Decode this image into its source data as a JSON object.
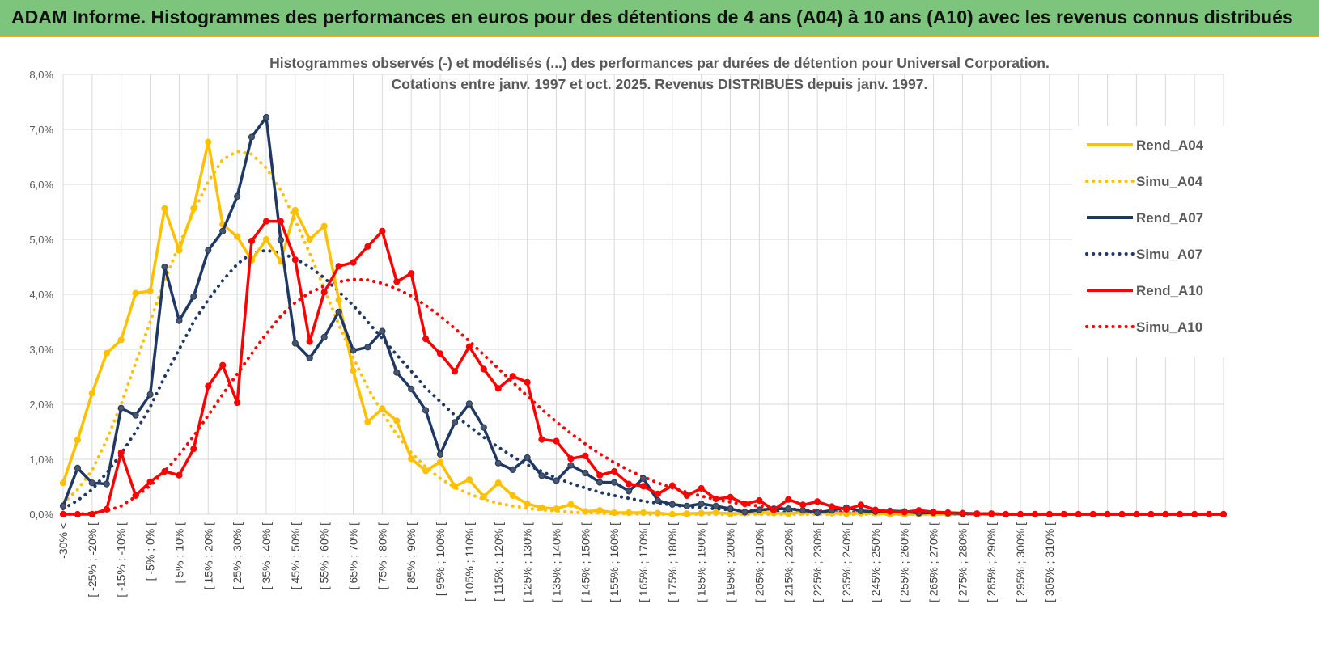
{
  "header": {
    "title": "ADAM Informe. Histogrammes des performances en euros pour des détentions de 4 ans (A04) à 10 ans (A10) avec les revenus connus distribués"
  },
  "chart_data": {
    "type": "line",
    "title_lines": [
      "Histogrammes observés (-) et modélisés (...) des performances par durées de détention pour Universal Corporation.",
      "Cotations entre janv. 1997 et oct. 2025. Revenus DISTRIBUES depuis janv. 1997."
    ],
    "ylim": [
      0,
      8
    ],
    "yticks": [
      "0,0%",
      "1,0%",
      "2,0%",
      "3,0%",
      "4,0%",
      "5,0%",
      "6,0%",
      "7,0%",
      "8,0%"
    ],
    "x_labels": [
      "-30% <",
      "[ -25% ; -20% [",
      "[ -15% ; -10% [",
      "[ -5% ; 0% [",
      "[ 5% ; 10% [",
      "[ 15% ; 20% [",
      "[ 25% ; 30% [",
      "[ 35% ; 40% [",
      "[ 45% ; 50% [",
      "[ 55% ; 60% [",
      "[ 65% ; 70% [",
      "[ 75% ; 80% [",
      "[ 85% ; 90% [",
      "[ 95% ; 100% [",
      "[ 105% ; 110% [",
      "[ 115% ; 120% [",
      "[ 125% ; 130% [",
      "[ 135% ; 140% [",
      "[ 145% ; 150% [",
      "[ 155% ; 160% [",
      "[ 165% ; 170% [",
      "[ 175% ; 180% [",
      "[ 185% ; 190% [",
      "[ 195% ; 200% [",
      "[ 205% ; 210% [",
      "[ 215% ; 220% [",
      "[ 225% ; 230% [",
      "[ 235% ; 240% [",
      "[ 245% ; 250% [",
      "[ 255% ; 260% [",
      "[ 265% ; 270% [",
      "[ 275% ; 280% [",
      "[ 285% ; 290% [",
      "[ 295% ; 300% [",
      "[ 305% ; 310% ["
    ],
    "legend_position": "right",
    "series": [
      {
        "name": "Rend_A04",
        "color": "#ffc000",
        "style": "solid",
        "values": [
          0.57,
          1.35,
          2.2,
          2.93,
          3.17,
          4.02,
          4.06,
          5.56,
          4.8,
          5.56,
          6.77,
          5.27,
          5.05,
          4.62,
          5.0,
          4.6,
          5.53,
          5.0,
          5.24,
          3.9,
          2.61,
          1.68,
          1.92,
          1.7,
          1.01,
          0.79,
          0.95,
          0.51,
          0.63,
          0.32,
          0.57,
          0.34,
          0.19,
          0.12,
          0.1,
          0.18,
          0.05,
          0.07,
          0.03,
          0.03,
          0.03,
          0.02,
          0,
          0.01,
          0.02,
          0.03,
          0.01,
          0.02,
          0.04,
          0.02,
          0.01,
          0.04,
          0.03,
          0.02,
          0.01,
          0.02,
          0.02,
          0,
          0,
          0,
          0,
          0,
          0,
          0,
          0,
          0,
          0,
          0,
          0,
          0,
          0,
          0,
          0,
          0,
          0,
          0,
          0,
          0,
          0,
          0,
          0
        ]
      },
      {
        "name": "Simu_A04",
        "color": "#ffc000",
        "style": "dotted",
        "values": [
          0.2,
          0.45,
          0.8,
          1.35,
          2.0,
          2.75,
          3.5,
          4.25,
          4.9,
          5.5,
          6.05,
          6.45,
          6.6,
          6.55,
          6.3,
          5.9,
          5.35,
          4.75,
          4.1,
          3.45,
          2.85,
          2.3,
          1.85,
          1.45,
          1.12,
          0.86,
          0.65,
          0.49,
          0.37,
          0.27,
          0.2,
          0.15,
          0.11,
          0.08,
          0.06,
          0.04,
          0.03,
          0.02,
          0.01,
          0.01,
          0,
          0,
          0,
          0,
          0,
          0,
          0,
          0,
          0,
          0,
          0,
          0,
          0,
          0,
          0,
          0,
          0,
          0,
          0,
          0,
          0,
          0,
          0,
          0,
          0,
          0,
          0,
          0,
          0,
          0,
          0,
          0,
          0,
          0,
          0,
          0,
          0,
          0,
          0,
          0,
          0
        ]
      },
      {
        "name": "Rend_A07",
        "color": "#1f3864",
        "style": "solid",
        "values": [
          0.15,
          0.84,
          0.57,
          0.55,
          1.93,
          1.8,
          2.18,
          4.5,
          3.52,
          3.96,
          4.8,
          5.15,
          5.78,
          6.86,
          7.22,
          4.99,
          3.11,
          2.84,
          3.22,
          3.68,
          2.98,
          3.04,
          3.33,
          2.58,
          2.28,
          1.89,
          1.09,
          1.67,
          2.01,
          1.58,
          0.93,
          0.81,
          1.03,
          0.7,
          0.61,
          0.89,
          0.75,
          0.58,
          0.58,
          0.42,
          0.65,
          0.25,
          0.18,
          0.15,
          0.19,
          0.15,
          0.1,
          0.04,
          0.08,
          0.1,
          0.1,
          0.07,
          0.03,
          0.07,
          0.12,
          0.06,
          0.05,
          0.06,
          0.05,
          0.02,
          0.03,
          0.02,
          0.01,
          0.01,
          0.01,
          0,
          0,
          0,
          0,
          0,
          0,
          0,
          0,
          0,
          0,
          0,
          0,
          0,
          0,
          0,
          0
        ]
      },
      {
        "name": "Simu_A07",
        "color": "#1f3864",
        "style": "dotted",
        "values": [
          0.1,
          0.25,
          0.45,
          0.75,
          1.1,
          1.5,
          1.95,
          2.5,
          3.0,
          3.5,
          3.9,
          4.25,
          4.55,
          4.75,
          4.8,
          4.75,
          4.65,
          4.5,
          4.3,
          4.05,
          3.8,
          3.5,
          3.2,
          2.9,
          2.6,
          2.3,
          2.05,
          1.8,
          1.6,
          1.4,
          1.22,
          1.05,
          0.9,
          0.78,
          0.66,
          0.56,
          0.48,
          0.4,
          0.34,
          0.29,
          0.24,
          0.2,
          0.17,
          0.14,
          0.12,
          0.1,
          0.08,
          0.07,
          0.06,
          0.05,
          0.04,
          0.04,
          0.03,
          0.03,
          0.02,
          0.02,
          0.02,
          0.01,
          0.01,
          0.01,
          0.01,
          0,
          0,
          0,
          0,
          0,
          0,
          0,
          0,
          0,
          0,
          0,
          0,
          0,
          0,
          0,
          0,
          0,
          0,
          0,
          0
        ]
      },
      {
        "name": "Rend_A10",
        "color": "#ff0000",
        "style": "solid",
        "values": [
          0,
          0,
          0,
          0.09,
          1.12,
          0.34,
          0.59,
          0.78,
          0.71,
          1.19,
          2.33,
          2.71,
          2.03,
          4.97,
          5.33,
          5.33,
          4.63,
          3.14,
          4.04,
          4.51,
          4.58,
          4.87,
          5.15,
          4.23,
          4.38,
          3.19,
          2.92,
          2.6,
          3.05,
          2.64,
          2.29,
          2.51,
          2.4,
          1.36,
          1.33,
          1.01,
          1.06,
          0.71,
          0.78,
          0.55,
          0.51,
          0.37,
          0.52,
          0.34,
          0.47,
          0.28,
          0.31,
          0.19,
          0.25,
          0.08,
          0.27,
          0.17,
          0.23,
          0.14,
          0.09,
          0.17,
          0.08,
          0.05,
          0.04,
          0.07,
          0.04,
          0.03,
          0.02,
          0.01,
          0.01,
          0,
          0,
          0,
          0,
          0,
          0,
          0,
          0,
          0,
          0,
          0,
          0,
          0,
          0,
          0,
          0
        ]
      },
      {
        "name": "Simu_A10",
        "color": "#ff0000",
        "style": "dotted",
        "values": [
          0,
          0,
          0.02,
          0.06,
          0.15,
          0.32,
          0.52,
          0.78,
          1.08,
          1.42,
          1.8,
          2.18,
          2.55,
          2.92,
          3.28,
          3.6,
          3.85,
          4.03,
          4.15,
          4.23,
          4.27,
          4.26,
          4.2,
          4.1,
          3.97,
          3.8,
          3.6,
          3.38,
          3.15,
          2.9,
          2.65,
          2.4,
          2.15,
          1.91,
          1.68,
          1.47,
          1.28,
          1.1,
          0.94,
          0.8,
          0.68,
          0.57,
          0.48,
          0.4,
          0.33,
          0.27,
          0.22,
          0.18,
          0.15,
          0.12,
          0.1,
          0.08,
          0.06,
          0.05,
          0.04,
          0.03,
          0.03,
          0.02,
          0.02,
          0.01,
          0.01,
          0.01,
          0.01,
          0,
          0,
          0,
          0,
          0,
          0,
          0,
          0,
          0,
          0,
          0,
          0,
          0,
          0,
          0,
          0,
          0,
          0
        ]
      }
    ]
  }
}
